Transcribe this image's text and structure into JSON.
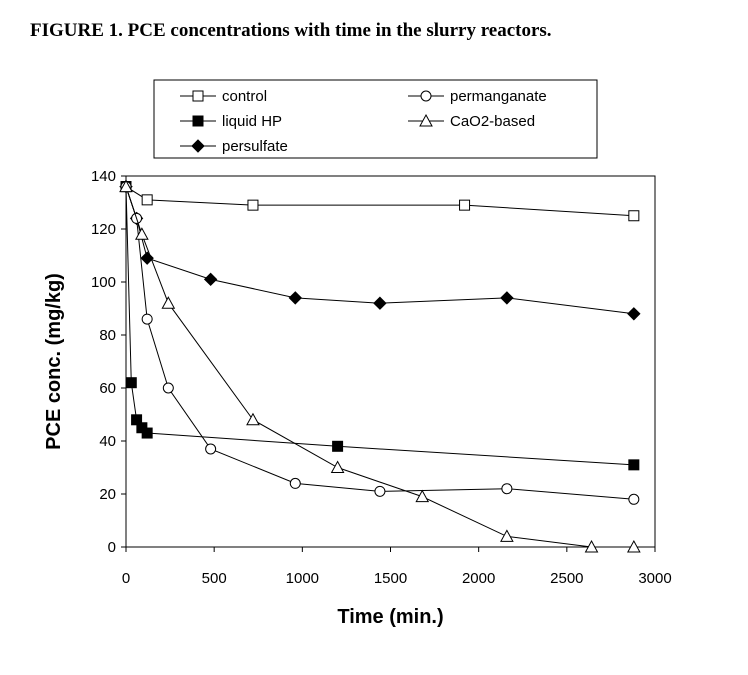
{
  "figure": {
    "title": "FIGURE 1. PCE concentrations with time in the slurry reactors."
  },
  "chart_data": {
    "type": "line",
    "title": "FIGURE 1. PCE concentrations with time in the slurry reactors.",
    "xlabel": "Time (min.)",
    "ylabel": "PCE conc. (mg/kg)",
    "xlim": [
      0,
      3000
    ],
    "ylim": [
      0,
      140
    ],
    "xticks": [
      0,
      500,
      1000,
      1500,
      2000,
      2500,
      3000
    ],
    "yticks": [
      0,
      20,
      40,
      60,
      80,
      100,
      120,
      140
    ],
    "grid": false,
    "legend": "top, two columns",
    "series": [
      {
        "name": "control",
        "marker": "square-open",
        "x": [
          0,
          120,
          720,
          1920,
          2880
        ],
        "y": [
          136,
          131,
          129,
          129,
          125
        ]
      },
      {
        "name": "liquid HP",
        "marker": "square-filled",
        "x": [
          0,
          30,
          60,
          90,
          120,
          1200,
          2880
        ],
        "y": [
          136,
          62,
          48,
          45,
          43,
          38,
          31
        ]
      },
      {
        "name": "persulfate",
        "marker": "diamond-filled",
        "x": [
          0,
          60,
          120,
          480,
          960,
          1440,
          2160,
          2880
        ],
        "y": [
          136,
          124,
          109,
          101,
          94,
          92,
          94,
          88
        ]
      },
      {
        "name": "permanganate",
        "marker": "circle-open",
        "x": [
          0,
          60,
          120,
          240,
          480,
          960,
          1440,
          2160,
          2880
        ],
        "y": [
          136,
          124,
          86,
          60,
          37,
          24,
          21,
          22,
          18
        ]
      },
      {
        "name": "CaO2-based",
        "marker": "triangle-open",
        "x": [
          0,
          90,
          240,
          720,
          1200,
          1680,
          2160,
          2640,
          2880
        ],
        "y": [
          136,
          118,
          92,
          48,
          30,
          19,
          4,
          0,
          0
        ]
      }
    ]
  }
}
